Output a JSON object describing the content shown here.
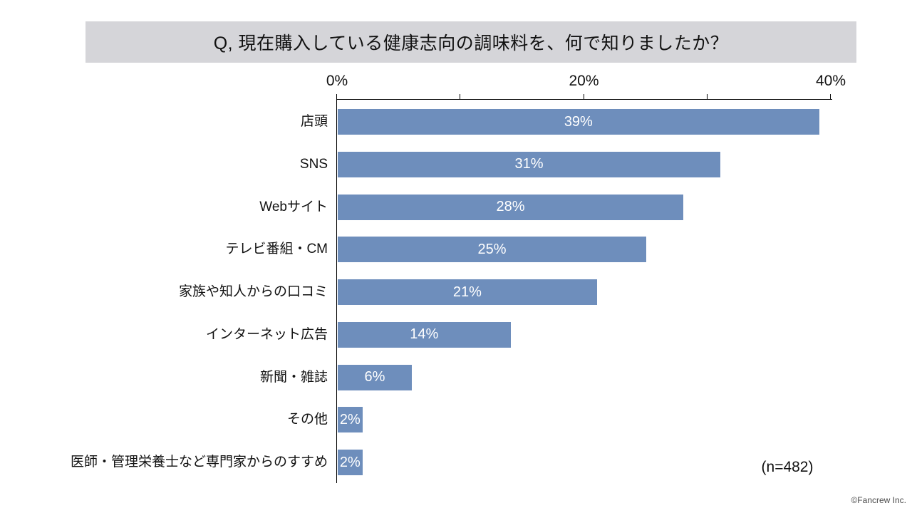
{
  "title": "Q, 現在購入している健康志向の調味料を、何で知りましたか？",
  "sample_size_label": "(n=482)",
  "credit": "©Fancrew Inc.",
  "colors": {
    "bar": "#6E8EBC",
    "title_banner_bg": "#D5D5D9",
    "axis": "#000000",
    "bar_label": "#FFFFFF",
    "text": "#111111"
  },
  "chart_data": {
    "type": "bar",
    "orientation": "horizontal",
    "title": "Q, 現在購入している健康志向の調味料を、何で知りましたか？",
    "categories": [
      "店頭",
      "SNS",
      "Webサイト",
      "テレビ番組・CM",
      "家族や知人からの口コミ",
      "インターネット広告",
      "新聞・雑誌",
      "その他",
      "医師・管理栄養士など専門家からのすすめ"
    ],
    "values": [
      39,
      31,
      28,
      25,
      21,
      14,
      6,
      2,
      2
    ],
    "value_labels": [
      "39%",
      "31%",
      "28%",
      "25%",
      "21%",
      "14%",
      "6%",
      "2%",
      "2%"
    ],
    "xlim": [
      0,
      40
    ],
    "x_tick_labels": [
      "0%",
      "20%",
      "40%"
    ],
    "x_ticks_labeled": [
      0,
      20,
      40
    ],
    "x_ticks_minor": [
      10,
      30
    ],
    "axis_position": "top",
    "grid": false,
    "legend": false,
    "annotations": [
      "(n=482)"
    ]
  }
}
